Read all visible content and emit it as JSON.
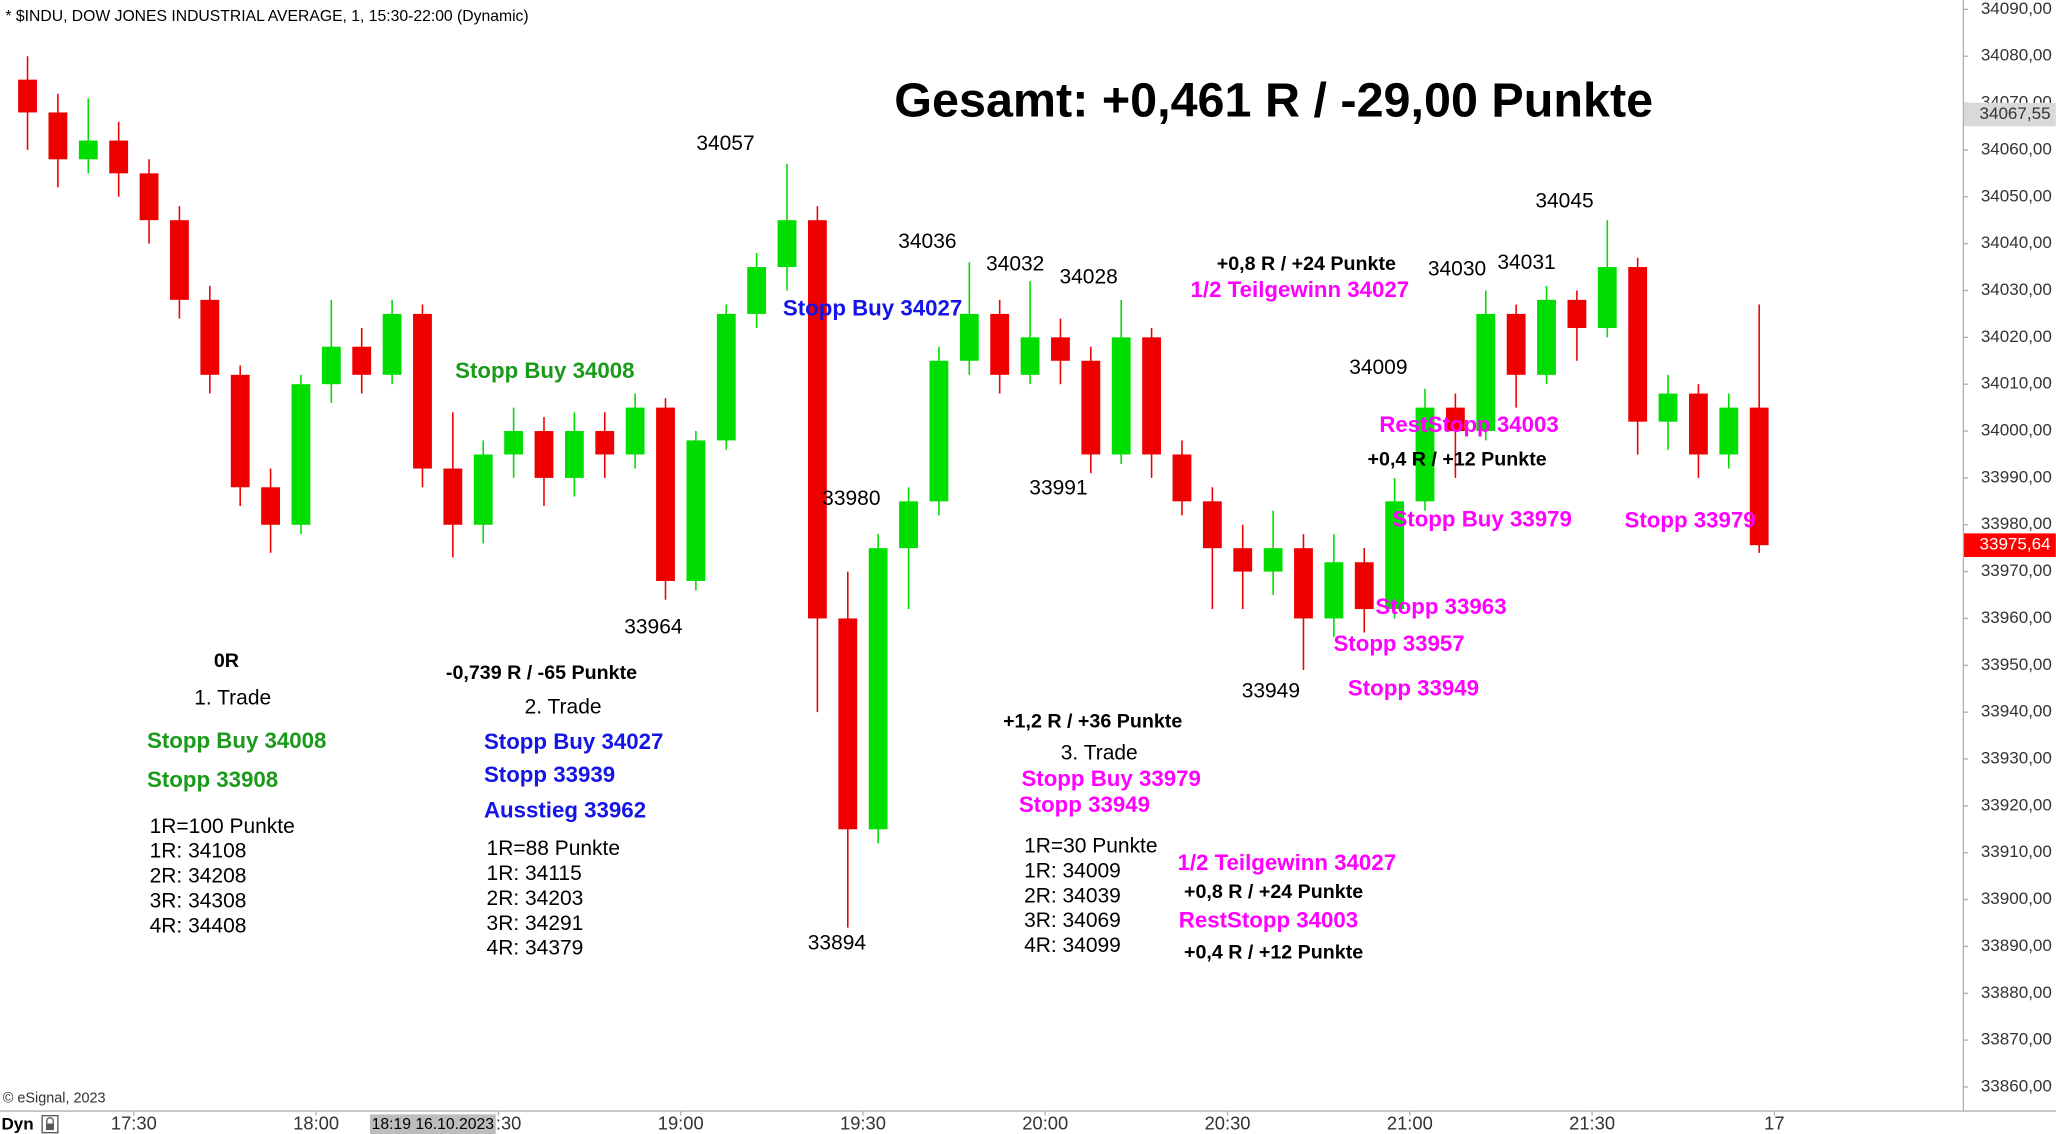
{
  "chart_data": {
    "type": "candlestick",
    "title": "* $INDU, DOW JONES INDUSTRIAL AVERAGE, 1, 15:30-22:00 (Dynamic)",
    "subtitle": "Gesamt: +0,461 R / -29,00 Punkte",
    "source": "© eSignal, 2023",
    "mode_label": "Dyn",
    "cursor_label": "18:19 16.10.2023",
    "up_color": "#00dd00",
    "down_color": "#ee0000",
    "xlim": [
      "17:08",
      "22:31"
    ],
    "xticks": [
      "17:30",
      "18:00",
      "18:30",
      "19:00",
      "19:30",
      "20:00",
      "20:30",
      "21:00",
      "21:30",
      {
        "value": "22:00",
        "label": "17"
      }
    ],
    "ylim": [
      33855,
      34092
    ],
    "yticks": [
      {
        "value": 33860,
        "label": "33860,00"
      },
      {
        "value": 33870,
        "label": "33870,00"
      },
      {
        "value": 33880,
        "label": "33880,00"
      },
      {
        "value": 33890,
        "label": "33890,00"
      },
      {
        "value": 33900,
        "label": "33900,00"
      },
      {
        "value": 33910,
        "label": "33910,00"
      },
      {
        "value": 33920,
        "label": "33920,00"
      },
      {
        "value": 33930,
        "label": "33930,00"
      },
      {
        "value": 33940,
        "label": "33940,00"
      },
      {
        "value": 33950,
        "label": "33950,00"
      },
      {
        "value": 33960,
        "label": "33960,00"
      },
      {
        "value": 33970,
        "label": "33970,00"
      },
      {
        "value": 33980,
        "label": "33980,00"
      },
      {
        "value": 33990,
        "label": "33990,00"
      },
      {
        "value": 34000,
        "label": "34000,00"
      },
      {
        "value": 34010,
        "label": "34010,00"
      },
      {
        "value": 34020,
        "label": "34020,00"
      },
      {
        "value": 34030,
        "label": "34030,00"
      },
      {
        "value": 34040,
        "label": "34040,00"
      },
      {
        "value": 34050,
        "label": "34050,00"
      },
      {
        "value": 34060,
        "label": "34060,00"
      },
      {
        "value": 34070,
        "label": "34070,00"
      },
      {
        "value": 34080,
        "label": "34080,00"
      },
      {
        "value": 34090,
        "label": "34090,00"
      }
    ],
    "price_marks": [
      {
        "value": 34067.55,
        "label": "34067,55",
        "color": "#d9d9d9"
      },
      {
        "value": 33975.64,
        "label": "33975,64",
        "color": "#ff0000"
      }
    ],
    "x": [
      "17:10",
      "17:15",
      "17:20",
      "17:25",
      "17:30",
      "17:35",
      "17:40",
      "17:45",
      "17:50",
      "17:55",
      "18:00",
      "18:05",
      "18:10",
      "18:15",
      "18:20",
      "18:25",
      "18:30",
      "18:35",
      "18:40",
      "18:45",
      "18:50",
      "18:55",
      "19:00",
      "19:05",
      "19:10",
      "19:15",
      "19:20",
      "19:25",
      "19:30",
      "19:35",
      "19:40",
      "19:45",
      "19:50",
      "19:55",
      "20:00",
      "20:05",
      "20:10",
      "20:15",
      "20:20",
      "20:25",
      "20:30",
      "20:35",
      "20:40",
      "20:45",
      "20:50",
      "20:55",
      "21:00",
      "21:05",
      "21:10",
      "21:15",
      "21:20",
      "21:25",
      "21:30",
      "21:35",
      "21:40",
      "21:45",
      "21:50",
      "21:55"
    ],
    "open": [
      34075,
      34068,
      34058,
      34062,
      34055,
      34045,
      34028,
      34012,
      33988,
      33980,
      34010,
      34018,
      34012,
      34025,
      33992,
      33980,
      33995,
      34000,
      33990,
      34000,
      33995,
      34005,
      33968,
      33998,
      34025,
      34035,
      34045,
      33960,
      33915,
      33975,
      33985,
      34015,
      34025,
      34012,
      34020,
      34015,
      33995,
      34020,
      33995,
      33985,
      33975,
      33970,
      33975,
      33960,
      33972,
      33962,
      33985,
      34005,
      34000,
      34025,
      34012,
      34028,
      34022,
      34035,
      34002,
      34008,
      33995,
      34005
    ],
    "high": [
      34080,
      34072,
      34071,
      34066,
      34058,
      34048,
      34031,
      34014,
      33992,
      34012,
      34028,
      34022,
      34028,
      34027,
      34004,
      33998,
      34005,
      34003,
      34004,
      34004,
      34008,
      34007,
      34000,
      34027,
      34038,
      34057,
      34048,
      33970,
      33978,
      33988,
      34018,
      34036,
      34028,
      34032,
      34024,
      34018,
      34028,
      34022,
      33998,
      33988,
      33980,
      33983,
      33978,
      33978,
      33975,
      33990,
      34009,
      34008,
      34030,
      34027,
      34031,
      34030,
      34045,
      34037,
      34012,
      34010,
      34008,
      34027
    ],
    "low": [
      34060,
      34052,
      34055,
      34050,
      34040,
      34024,
      34008,
      33984,
      33974,
      33978,
      34006,
      34008,
      34010,
      33988,
      33973,
      33976,
      33990,
      33984,
      33986,
      33990,
      33992,
      33964,
      33966,
      33996,
      34022,
      34030,
      33940,
      33894,
      33912,
      33962,
      33982,
      34012,
      34008,
      34010,
      34010,
      33991,
      33993,
      33990,
      33982,
      33962,
      33962,
      33965,
      33949,
      33956,
      33957,
      33960,
      33983,
      33990,
      33998,
      34005,
      34010,
      34015,
      34020,
      33995,
      33996,
      33990,
      33992,
      33974
    ],
    "close": [
      34068,
      34058,
      34062,
      34055,
      34045,
      34028,
      34012,
      33988,
      33980,
      34010,
      34018,
      34012,
      34025,
      33992,
      33980,
      33995,
      34000,
      33990,
      34000,
      33995,
      34005,
      33968,
      33998,
      34025,
      34035,
      34045,
      33960,
      33915,
      33975,
      33985,
      34015,
      34025,
      34012,
      34020,
      34015,
      33995,
      34020,
      33995,
      33985,
      33975,
      33970,
      33975,
      33960,
      33972,
      33962,
      33985,
      34005,
      34000,
      34025,
      34012,
      34028,
      34022,
      34035,
      34002,
      34008,
      33995,
      34005,
      33975.64
    ],
    "annotations": [
      {
        "text": "34057",
        "color": "#000000"
      },
      {
        "text": "34036",
        "color": "#000000"
      },
      {
        "text": "34032",
        "color": "#000000"
      },
      {
        "text": "34028",
        "color": "#000000"
      },
      {
        "text": "34045",
        "color": "#000000"
      },
      {
        "text": "34030",
        "color": "#000000"
      },
      {
        "text": "34031",
        "color": "#000000"
      },
      {
        "text": "34009",
        "color": "#000000"
      },
      {
        "text": "33980",
        "color": "#000000"
      },
      {
        "text": "33991",
        "color": "#000000"
      },
      {
        "text": "33964",
        "color": "#000000"
      },
      {
        "text": "33949",
        "color": "#000000"
      },
      {
        "text": "33894",
        "color": "#000000"
      },
      {
        "text": "Stopp Buy 34027",
        "color": "#1414e6",
        "bold": true
      },
      {
        "text": "Stopp Buy 34008",
        "color": "#1a9a1a",
        "bold": true
      },
      {
        "text": "+0,8 R / +24 Punkte",
        "color": "#000000",
        "bold": true
      },
      {
        "text": "1/2 Teilgewinn 34027",
        "color": "#ff00ff",
        "bold": true
      },
      {
        "text": "RestStopp 34003",
        "color": "#ff00ff",
        "bold": true
      },
      {
        "text": "+0,4 R / +12 Punkte",
        "color": "#000000",
        "bold": true
      },
      {
        "text": "Stopp Buy 33979",
        "color": "#ff00ff",
        "bold": true
      },
      {
        "text": "Stopp 33979",
        "color": "#ff00ff",
        "bold": true
      },
      {
        "text": "Stopp 33963",
        "color": "#ff00ff",
        "bold": true
      },
      {
        "text": "Stopp 33957",
        "color": "#ff00ff",
        "bold": true
      },
      {
        "text": "Stopp 33949",
        "color": "#ff00ff",
        "bold": true
      },
      {
        "text": "0R",
        "color": "#000000",
        "bold": true
      },
      {
        "text": "1. Trade",
        "color": "#000000"
      },
      {
        "text": "Stopp Buy 34008",
        "color": "#1a9a1a",
        "bold": true
      },
      {
        "text": "Stopp 33908",
        "color": "#1a9a1a",
        "bold": true
      },
      {
        "text": "1R=100 Punkte",
        "color": "#000000"
      },
      {
        "text": "1R: 34108",
        "color": "#000000"
      },
      {
        "text": "2R: 34208",
        "color": "#000000"
      },
      {
        "text": "3R: 34308",
        "color": "#000000"
      },
      {
        "text": "4R: 34408",
        "color": "#000000"
      },
      {
        "text": "-0,739 R / -65 Punkte",
        "color": "#000000",
        "bold": true
      },
      {
        "text": "2. Trade",
        "color": "#000000"
      },
      {
        "text": "Stopp Buy 34027",
        "color": "#1414e6",
        "bold": true
      },
      {
        "text": "Stopp 33939",
        "color": "#1414e6",
        "bold": true
      },
      {
        "text": "Ausstieg 33962",
        "color": "#1414e6",
        "bold": true
      },
      {
        "text": "1R=88 Punkte",
        "color": "#000000"
      },
      {
        "text": "1R: 34115",
        "color": "#000000"
      },
      {
        "text": "2R: 34203",
        "color": "#000000"
      },
      {
        "text": "3R: 34291",
        "color": "#000000"
      },
      {
        "text": "4R: 34379",
        "color": "#000000"
      },
      {
        "text": "+1,2 R / +36 Punkte",
        "color": "#000000",
        "bold": true
      },
      {
        "text": "3. Trade",
        "color": "#000000"
      },
      {
        "text": "Stopp Buy 33979",
        "color": "#ff00ff",
        "bold": true
      },
      {
        "text": "Stopp 33949",
        "color": "#ff00ff",
        "bold": true
      },
      {
        "text": "1R=30 Punkte",
        "color": "#000000"
      },
      {
        "text": "1R: 34009",
        "color": "#000000"
      },
      {
        "text": "2R: 34039",
        "color": "#000000"
      },
      {
        "text": "3R: 34069",
        "color": "#000000"
      },
      {
        "text": "4R: 34099",
        "color": "#000000"
      },
      {
        "text": "1/2 Teilgewinn 34027",
        "color": "#ff00ff",
        "bold": true
      },
      {
        "text": "+0,8 R / +24 Punkte",
        "color": "#000000",
        "bold": true
      },
      {
        "text": "RestStopp 34003",
        "color": "#ff00ff",
        "bold": true
      },
      {
        "text": "+0,4 R / +12 Punkte",
        "color": "#000000",
        "bold": true
      }
    ]
  }
}
